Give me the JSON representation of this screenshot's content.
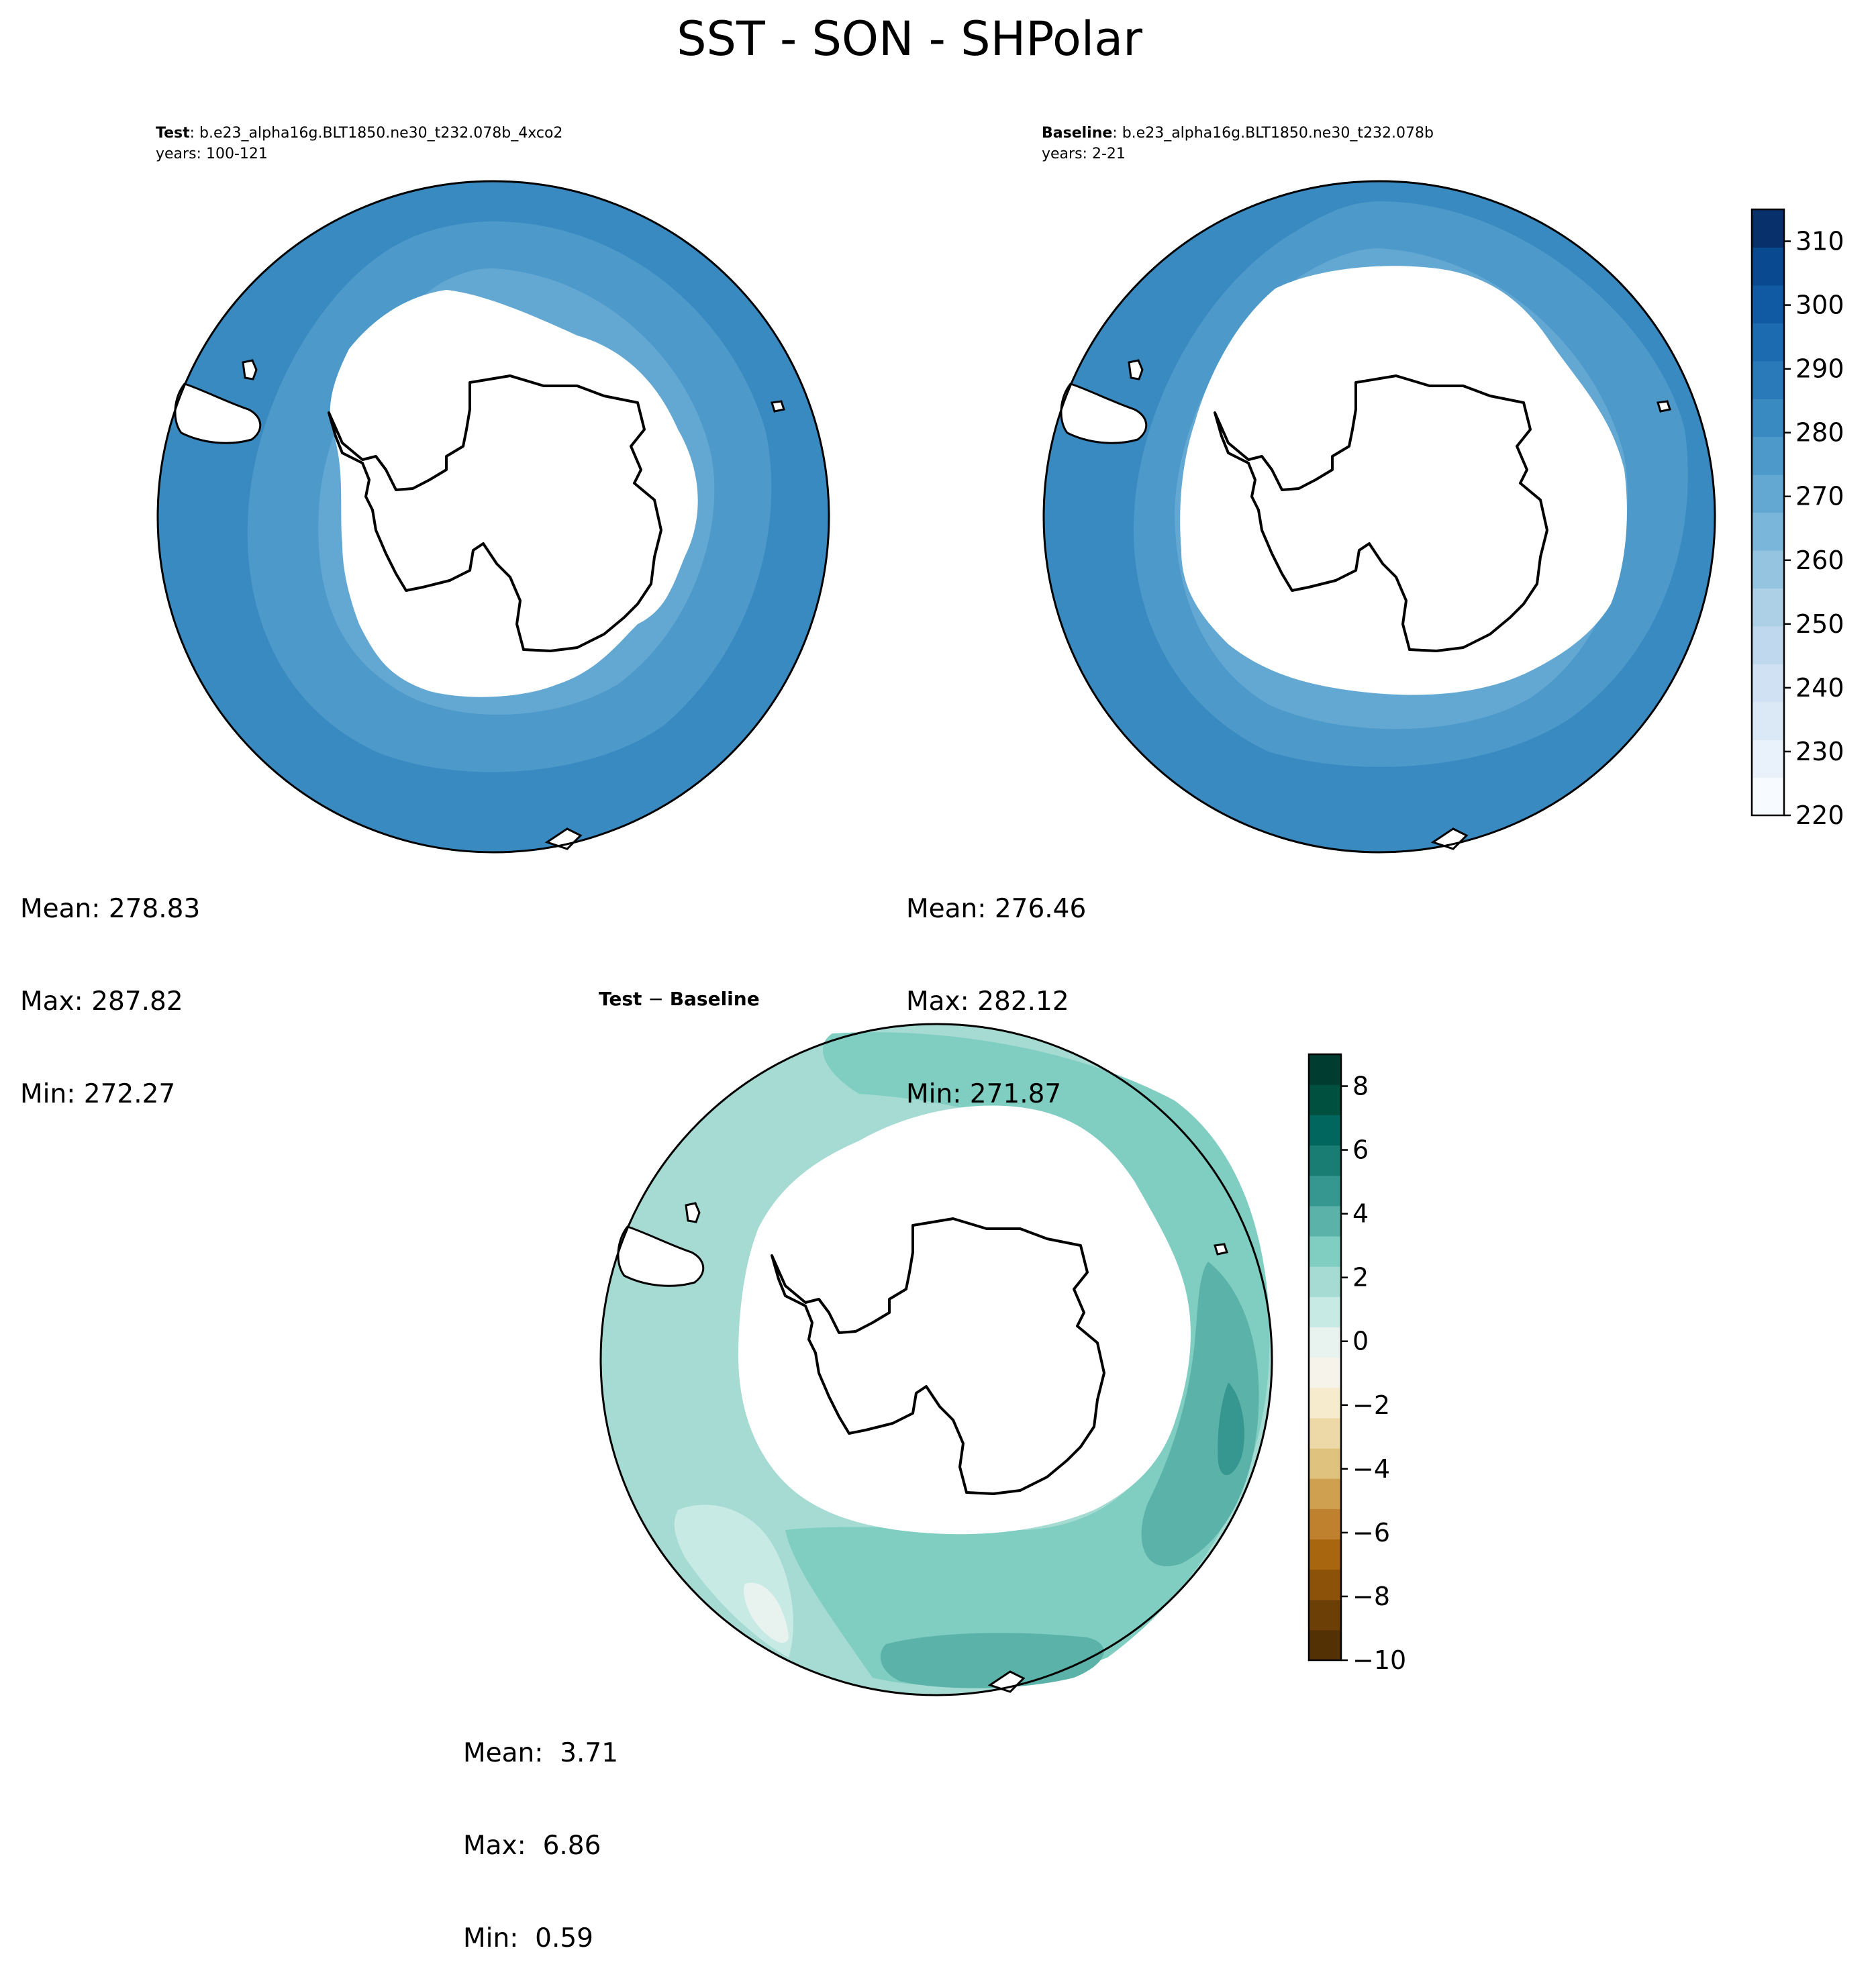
{
  "figure_title": "SST - SON - SHPolar",
  "colors": {
    "test_levels": [
      "#f7fbff",
      "#e9f2fb",
      "#dbe9f6",
      "#cfe1f2",
      "#bfd8ed",
      "#add0e6",
      "#94c4df",
      "#7ab6d9",
      "#63a8d3",
      "#4c99ca",
      "#3a8ac2",
      "#2a7ab9",
      "#1c6aaf",
      "#0f5aa3",
      "#08498f",
      "#08306b"
    ],
    "diff_levels": [
      "#543005",
      "#6c3f07",
      "#8c520a",
      "#a8660f",
      "#bf812d",
      "#cfa050",
      "#dfc27d",
      "#ecd9a7",
      "#f6ebcc",
      "#f5f3ea",
      "#e8f3f0",
      "#c7eae5",
      "#a5dbd2",
      "#80cdc1",
      "#5ab2a8",
      "#35978f",
      "#1a7d74",
      "#01665e",
      "#00503f",
      "#003c30"
    ],
    "land": "#ffffff",
    "coast": "#000000"
  },
  "chart_data": [
    {
      "type": "polar-contour-map",
      "id": "test",
      "title_bold": "Test",
      "title_rest": ": b.e23_alpha16g.BLT1850.ne30_t232.078b_4xco2",
      "subtitle": "years: 100-121",
      "projection": "South Polar Stereographic",
      "stats": {
        "mean_label": "Mean:",
        "mean": "278.83",
        "max_label": "Max:",
        "max": "287.82",
        "min_label": "Min:",
        "min": "272.27"
      }
    },
    {
      "type": "polar-contour-map",
      "id": "baseline",
      "title_bold": "Baseline",
      "title_rest": ": b.e23_alpha16g.BLT1850.ne30_t232.078b",
      "subtitle": "years: 2-21",
      "projection": "South Polar Stereographic",
      "stats": {
        "mean_label": "Mean:",
        "mean": "276.46",
        "max_label": "Max:",
        "max": "282.12",
        "min_label": "Min:",
        "min": "271.87"
      },
      "colorbar": {
        "range": [
          220,
          315
        ],
        "ticks": [
          220,
          230,
          240,
          250,
          260,
          270,
          280,
          290,
          300,
          310
        ],
        "tick_labels": [
          "220",
          "230",
          "240",
          "250",
          "260",
          "270",
          "280",
          "290",
          "300",
          "310"
        ]
      }
    },
    {
      "type": "polar-contour-map",
      "id": "difference",
      "title_bold": "Test",
      "title_op": " − ",
      "title_bold2": "Baseline",
      "projection": "South Polar Stereographic",
      "stats": {
        "mean_label": "Mean:",
        "mean": " 3.71",
        "max_label": "Max:",
        "max": " 6.86",
        "min_label": "Min:",
        "min": " 0.59"
      },
      "colorbar": {
        "range": [
          -10,
          9
        ],
        "ticks": [
          -10,
          -8,
          -6,
          -4,
          -2,
          0,
          2,
          4,
          6,
          8
        ],
        "tick_labels": [
          "−10",
          "−8",
          "−6",
          "−4",
          "−2",
          "0",
          "2",
          "4",
          "6",
          "8"
        ]
      }
    }
  ]
}
